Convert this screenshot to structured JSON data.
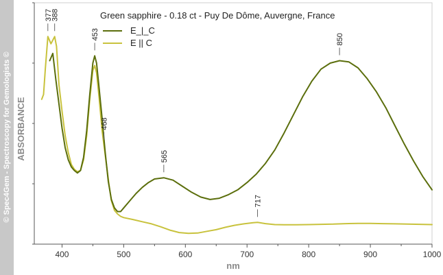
{
  "watermark": "© Spec4Gem - Spectroscopy for Gemologists ©",
  "chart_data": {
    "type": "line",
    "title": "Green sapphire - 0.18 ct - Puy De Dôme, Auvergne, France",
    "xlabel": "nm",
    "ylabel": "ABSORBANCE",
    "xlim": [
      355,
      1000
    ],
    "ylim": [
      0,
      100
    ],
    "xticks": [
      400,
      500,
      600,
      700,
      800,
      900,
      1000
    ],
    "legend_position": "top-left",
    "series": [
      {
        "name": "E_|_C",
        "color": "#5b6e0c",
        "points": [
          [
            380,
            76
          ],
          [
            385,
            79
          ],
          [
            390,
            68
          ],
          [
            395,
            58
          ],
          [
            400,
            48
          ],
          [
            405,
            40
          ],
          [
            410,
            35
          ],
          [
            415,
            32
          ],
          [
            420,
            30.5
          ],
          [
            425,
            29.5
          ],
          [
            430,
            30.5
          ],
          [
            435,
            36
          ],
          [
            440,
            47
          ],
          [
            445,
            62
          ],
          [
            450,
            75
          ],
          [
            453,
            78
          ],
          [
            456,
            75
          ],
          [
            460,
            65
          ],
          [
            465,
            52
          ],
          [
            470,
            38
          ],
          [
            475,
            26
          ],
          [
            480,
            18.5
          ],
          [
            485,
            15
          ],
          [
            490,
            13.5
          ],
          [
            495,
            13.5
          ],
          [
            500,
            15
          ],
          [
            510,
            18
          ],
          [
            520,
            21
          ],
          [
            530,
            23.5
          ],
          [
            540,
            25.5
          ],
          [
            550,
            27
          ],
          [
            565,
            27.5
          ],
          [
            580,
            26.5
          ],
          [
            595,
            24
          ],
          [
            610,
            21.5
          ],
          [
            625,
            19.5
          ],
          [
            640,
            18.5
          ],
          [
            655,
            19
          ],
          [
            670,
            20.5
          ],
          [
            685,
            22.5
          ],
          [
            700,
            25.5
          ],
          [
            715,
            29
          ],
          [
            730,
            33.5
          ],
          [
            745,
            39
          ],
          [
            760,
            46
          ],
          [
            775,
            53.5
          ],
          [
            790,
            61
          ],
          [
            805,
            67.5
          ],
          [
            820,
            72.5
          ],
          [
            835,
            75
          ],
          [
            850,
            76
          ],
          [
            865,
            75.5
          ],
          [
            880,
            73
          ],
          [
            895,
            68.5
          ],
          [
            910,
            63
          ],
          [
            925,
            56.5
          ],
          [
            940,
            49
          ],
          [
            955,
            41.5
          ],
          [
            970,
            34.5
          ],
          [
            985,
            28
          ],
          [
            1000,
            22.5
          ]
        ]
      },
      {
        "name": "E || C",
        "color": "#c8c23c",
        "points": [
          [
            367,
            60
          ],
          [
            370,
            62
          ],
          [
            373,
            73
          ],
          [
            377,
            86
          ],
          [
            382,
            83
          ],
          [
            388,
            86
          ],
          [
            391,
            82
          ],
          [
            395,
            66
          ],
          [
            400,
            55
          ],
          [
            405,
            45
          ],
          [
            410,
            38
          ],
          [
            415,
            33
          ],
          [
            420,
            31
          ],
          [
            425,
            30
          ],
          [
            430,
            30.5
          ],
          [
            435,
            35
          ],
          [
            440,
            45
          ],
          [
            445,
            60
          ],
          [
            450,
            72
          ],
          [
            453,
            74
          ],
          [
            456,
            71
          ],
          [
            460,
            61
          ],
          [
            465,
            47
          ],
          [
            468,
            41
          ],
          [
            472,
            33
          ],
          [
            476,
            25
          ],
          [
            480,
            18
          ],
          [
            485,
            14
          ],
          [
            490,
            12.5
          ],
          [
            495,
            11.5
          ],
          [
            500,
            11
          ],
          [
            515,
            10.2
          ],
          [
            530,
            9.3
          ],
          [
            545,
            8.4
          ],
          [
            560,
            7.2
          ],
          [
            575,
            5.8
          ],
          [
            590,
            4.8
          ],
          [
            605,
            4.5
          ],
          [
            620,
            4.6
          ],
          [
            635,
            5.3
          ],
          [
            650,
            6
          ],
          [
            665,
            7
          ],
          [
            680,
            7.8
          ],
          [
            695,
            8.4
          ],
          [
            710,
            8.9
          ],
          [
            717,
            9
          ],
          [
            730,
            8.5
          ],
          [
            745,
            8.1
          ],
          [
            760,
            8
          ],
          [
            780,
            8
          ],
          [
            800,
            8.1
          ],
          [
            820,
            8.2
          ],
          [
            840,
            8.3
          ],
          [
            860,
            8.5
          ],
          [
            880,
            8.6
          ],
          [
            900,
            8.6
          ],
          [
            920,
            8.5
          ],
          [
            940,
            8.4
          ],
          [
            960,
            8.3
          ],
          [
            980,
            8.2
          ],
          [
            1000,
            8.1
          ]
        ]
      }
    ],
    "annotations": [
      {
        "label": "377",
        "x": 377,
        "y": 86
      },
      {
        "label": "388",
        "x": 388,
        "y": 86
      },
      {
        "label": "453",
        "x": 453,
        "y": 78
      },
      {
        "label": "468",
        "x": 468,
        "y": 41
      },
      {
        "label": "565",
        "x": 565,
        "y": 27.5
      },
      {
        "label": "717",
        "x": 717,
        "y": 9
      },
      {
        "label": "850",
        "x": 850,
        "y": 76
      }
    ]
  }
}
